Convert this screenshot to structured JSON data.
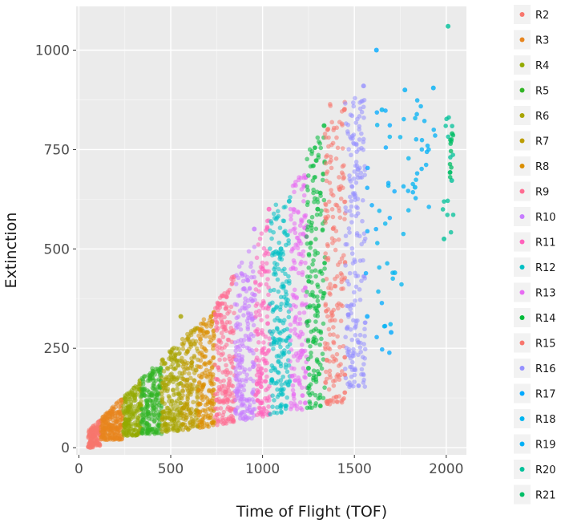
{
  "chart_data": {
    "type": "scatter",
    "xlabel": "Time of Flight (TOF)",
    "ylabel": "Extinction",
    "xlim": [
      -15,
      2110
    ],
    "ylim": [
      -18,
      1110
    ],
    "xticks": [
      0,
      500,
      1000,
      1500,
      2000
    ],
    "xtick_labels": [
      "0",
      "500",
      "1000",
      "1500",
      "2000"
    ],
    "yticks": [
      0,
      250,
      500,
      750,
      1000
    ],
    "ytick_labels": [
      "0",
      "250",
      "500",
      "750",
      "1000"
    ],
    "grid": true,
    "legend_position": "right",
    "series": [
      {
        "name": "R2",
        "color": "#F8766D",
        "x_range": [
          50,
          120
        ],
        "y_range": [
          0,
          75
        ],
        "points": [
          [
            60,
            10
          ],
          [
            80,
            30
          ],
          [
            100,
            45
          ],
          [
            118,
            68
          ]
        ]
      },
      {
        "name": "R3",
        "color": "#E7851E",
        "x_range": [
          120,
          240
        ],
        "y_range": [
          20,
          130
        ],
        "points": [
          [
            130,
            40
          ],
          [
            180,
            90
          ],
          [
            230,
            120
          ]
        ]
      },
      {
        "name": "R4",
        "color": "#93AA00",
        "x_range": [
          240,
          340
        ],
        "y_range": [
          30,
          170
        ],
        "points": [
          [
            250,
            60
          ],
          [
            300,
            150
          ],
          [
            335,
            160
          ]
        ]
      },
      {
        "name": "R5",
        "color": "#31B425",
        "x_range": [
          340,
          450
        ],
        "y_range": [
          35,
          205
        ],
        "points": [
          [
            350,
            70
          ],
          [
            400,
            175
          ],
          [
            445,
            200
          ]
        ]
      },
      {
        "name": "R6",
        "color": "#A8A400",
        "x_range": [
          450,
          560
        ],
        "y_range": [
          40,
          340
        ],
        "points": [
          [
            460,
            90
          ],
          [
            500,
            240
          ],
          [
            555,
            330
          ]
        ]
      },
      {
        "name": "R7",
        "color": "#BC9D00",
        "x_range": [
          560,
          650
        ],
        "y_range": [
          45,
          310
        ],
        "points": [
          [
            570,
            100
          ],
          [
            610,
            260
          ],
          [
            645,
            300
          ]
        ]
      },
      {
        "name": "R8",
        "color": "#DB8E00",
        "x_range": [
          650,
          740
        ],
        "y_range": [
          50,
          340
        ],
        "points": [
          [
            660,
            110
          ],
          [
            700,
            290
          ],
          [
            735,
            340
          ]
        ]
      },
      {
        "name": "R9",
        "color": "#FF6C91",
        "x_range": [
          740,
          850
        ],
        "y_range": [
          55,
          440
        ],
        "points": [
          [
            750,
            120
          ],
          [
            800,
            350
          ],
          [
            845,
            430
          ]
        ]
      },
      {
        "name": "R10",
        "color": "#C77CFF",
        "x_range": [
          850,
          960
        ],
        "y_range": [
          60,
          560
        ],
        "points": [
          [
            860,
            140
          ],
          [
            900,
            400
          ],
          [
            955,
            550
          ]
        ]
      },
      {
        "name": "R11",
        "color": "#FF62BC",
        "x_range": [
          960,
          1040
        ],
        "y_range": [
          65,
          600
        ],
        "points": [
          [
            970,
            160
          ],
          [
            1000,
            450
          ],
          [
            1035,
            600
          ]
        ]
      },
      {
        "name": "R12",
        "color": "#00BFC4",
        "x_range": [
          1040,
          1150
        ],
        "y_range": [
          65,
          640
        ],
        "points": [
          [
            1050,
            170
          ],
          [
            1100,
            500
          ],
          [
            1145,
            620
          ]
        ]
      },
      {
        "name": "R13",
        "color": "#E76BF3",
        "x_range": [
          1150,
          1240
        ],
        "y_range": [
          70,
          690
        ],
        "points": [
          [
            1160,
            180
          ],
          [
            1200,
            520
          ],
          [
            1235,
            680
          ]
        ]
      },
      {
        "name": "R14",
        "color": "#00BA38",
        "x_range": [
          1240,
          1340
        ],
        "y_range": [
          75,
          820
        ],
        "points": [
          [
            1250,
            200
          ],
          [
            1300,
            600
          ],
          [
            1335,
            810
          ]
        ]
      },
      {
        "name": "R15",
        "color": "#F8766D",
        "x_range": [
          1340,
          1450
        ],
        "y_range": [
          80,
          870
        ],
        "points": [
          [
            1350,
            220
          ],
          [
            1420,
            650
          ],
          [
            1445,
            850
          ]
        ]
      },
      {
        "name": "R16",
        "color": "#9590FF",
        "x_range": [
          1450,
          1560
        ],
        "y_range": [
          150,
          920
        ],
        "points": [
          [
            1460,
            300
          ],
          [
            1520,
            700
          ],
          [
            1550,
            910
          ]
        ]
      },
      {
        "name": "R17",
        "color": "#00A9FF",
        "x_range": [
          1560,
          1720
        ],
        "y_range": [
          230,
          1000
        ],
        "points": [
          [
            1570,
            330
          ],
          [
            1620,
            1000
          ],
          [
            1700,
            290
          ]
        ]
      },
      {
        "name": "R18",
        "color": "#00B4F0",
        "x_range": [
          1620,
          1840
        ],
        "y_range": [
          280,
          900
        ],
        "points": [
          [
            1650,
            850
          ],
          [
            1830,
            655
          ],
          [
            1720,
            440
          ]
        ]
      },
      {
        "name": "R19",
        "color": "#00B0F6",
        "x_range": [
          1740,
          1950
        ],
        "y_range": [
          600,
          910
        ],
        "points": [
          [
            1775,
            900
          ],
          [
            1930,
            905
          ]
        ]
      },
      {
        "name": "R20",
        "color": "#00C19A",
        "x_range": [
          1980,
          2040
        ],
        "y_range": [
          520,
          1060
        ],
        "points": [
          [
            1988,
            525
          ],
          [
            2010,
            1060
          ],
          [
            2030,
            672
          ]
        ]
      },
      {
        "name": "R21",
        "color": "#00BE67",
        "x_range": [
          2020,
          2040
        ],
        "y_range": [
          670,
          790
        ],
        "points": [
          [
            2032,
            790
          ]
        ]
      }
    ]
  }
}
